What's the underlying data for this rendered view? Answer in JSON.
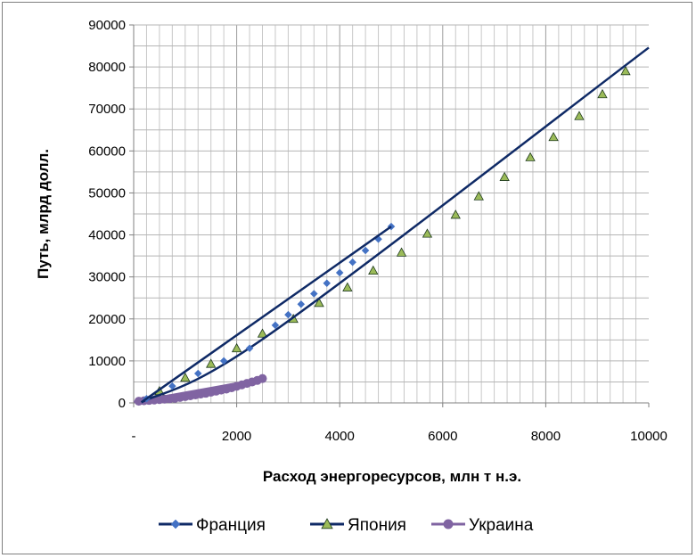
{
  "chart_data": {
    "type": "scatter",
    "xlabel": "Расход энергоресурсов, млн т н.э.",
    "ylabel": "Путь, млрд долл.",
    "xlim": [
      0,
      10000
    ],
    "ylim": [
      0,
      90000
    ],
    "x_ticks": [
      0,
      2000,
      4000,
      6000,
      8000,
      10000
    ],
    "x_tick_labels": [
      "-",
      "2000",
      "4000",
      "6000",
      "8000",
      "10000"
    ],
    "y_ticks": [
      0,
      10000,
      20000,
      30000,
      40000,
      50000,
      60000,
      70000,
      80000,
      90000
    ],
    "y_tick_labels": [
      "0",
      "10000",
      "20000",
      "30000",
      "40000",
      "50000",
      "60000",
      "70000",
      "80000",
      "90000"
    ],
    "grid": true,
    "legend_position": "bottom",
    "series": [
      {
        "name": "Франция",
        "marker": "diamond",
        "color": "#4472c4",
        "line_color": "#0f2a66",
        "x": [
          250,
          750,
          1250,
          1750,
          2250,
          2750,
          3000,
          3250,
          3500,
          3750,
          4000,
          4250,
          4500,
          4750,
          5000
        ],
        "y": [
          1000,
          4000,
          7000,
          10000,
          13000,
          18500,
          21000,
          23500,
          26000,
          28500,
          31000,
          33500,
          36300,
          39000,
          42000
        ],
        "trend_x": [
          150,
          5000
        ],
        "trend_y": [
          150,
          42000
        ]
      },
      {
        "name": "Япония",
        "marker": "triangle",
        "color": "#9bbb59",
        "line_color": "#0f2a66",
        "x": [
          500,
          1000,
          1500,
          2000,
          2500,
          3100,
          3600,
          4150,
          4650,
          5200,
          5700,
          6250,
          6700,
          7200,
          7700,
          8150,
          8650,
          9100,
          9550
        ],
        "y": [
          2800,
          6000,
          9300,
          13000,
          16500,
          20000,
          23800,
          27500,
          31500,
          35800,
          40300,
          44800,
          49200,
          53800,
          58500,
          63300,
          68300,
          73500,
          79000
        ],
        "trend_x": [
          150,
          2600,
          10000
        ],
        "trend_y": [
          150,
          16000,
          84600
        ]
      },
      {
        "name": "Украина",
        "marker": "circle",
        "color": "#8064a2",
        "line_color": "#8064a2",
        "x": [
          100,
          200,
          300,
          400,
          500,
          600,
          700,
          800,
          900,
          1000,
          1100,
          1200,
          1300,
          1400,
          1500,
          1600,
          1700,
          1800,
          1900,
          2000,
          2100,
          2200,
          2300,
          2400,
          2500
        ],
        "y": [
          400,
          500,
          600,
          700,
          800,
          900,
          1000,
          1100,
          1300,
          1500,
          1700,
          1900,
          2100,
          2300,
          2550,
          2800,
          3050,
          3300,
          3600,
          3950,
          4300,
          4650,
          5000,
          5350,
          5800
        ],
        "trend_x": [
          0,
          2500
        ],
        "trend_y": [
          300,
          5800
        ]
      }
    ]
  }
}
